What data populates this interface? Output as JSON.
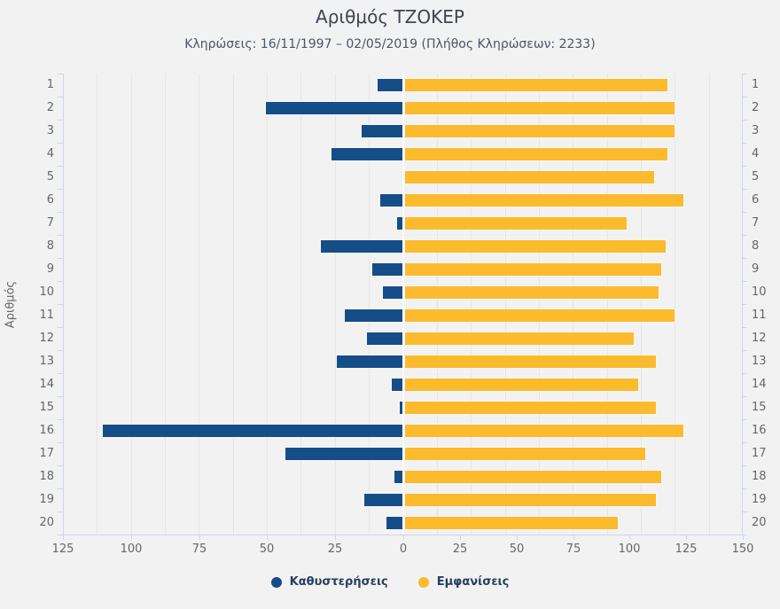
{
  "title": "Αριθμός ΤΖΟΚΕΡ",
  "subtitle": "Κληρώσεις: 16/11/1997 – 02/05/2019 (Πλήθος Κληρώσεων: 2233)",
  "y_axis_title": "Αριθμός",
  "legend": [
    {
      "name": "Καθυστερήσεις",
      "color": "#154e87"
    },
    {
      "name": "Εμφανίσεις",
      "color": "#fcba2d"
    }
  ],
  "colors": {
    "delays_bar": "#154e87",
    "appearances_bar": "#fcba2d",
    "axis_line": "#ccd6eb",
    "gridline": "#e6e6e6",
    "background": "#f2f2f2",
    "tick_label": "#666666",
    "legend_text": "#253f5e"
  },
  "chart_data": {
    "type": "bar",
    "orientation": "horizontal-diverging",
    "title": "Αριθμός ΤΖΟΚΕΡ",
    "subtitle": "Κληρώσεις: 16/11/1997 – 02/05/2019 (Πλήθος Κληρώσεων: 2233)",
    "ylabel": "Αριθμός",
    "grid": true,
    "legend_position": "bottom-center",
    "categories": [
      1,
      2,
      3,
      4,
      5,
      6,
      7,
      8,
      9,
      10,
      11,
      12,
      13,
      14,
      15,
      16,
      17,
      18,
      19,
      20
    ],
    "series": [
      {
        "name": "Καθυστερήσεις",
        "side": "left",
        "axis_max": 125,
        "color": "#154e87",
        "values": [
          9,
          50,
          15,
          26,
          0,
          8,
          2,
          30,
          11,
          7,
          21,
          13,
          24,
          4,
          1,
          110,
          43,
          3,
          14,
          6
        ]
      },
      {
        "name": "Εμφανίσεις",
        "side": "right",
        "axis_max": 150,
        "color": "#fcba2d",
        "values": [
          116,
          119,
          119,
          116,
          110,
          123,
          98,
          115,
          113,
          112,
          119,
          101,
          111,
          103,
          111,
          123,
          106,
          113,
          111,
          94
        ]
      }
    ],
    "x_ticks_left": [
      125,
      100,
      75,
      50,
      25,
      0
    ],
    "x_ticks_right": [
      25,
      50,
      75,
      100,
      125,
      150
    ]
  }
}
